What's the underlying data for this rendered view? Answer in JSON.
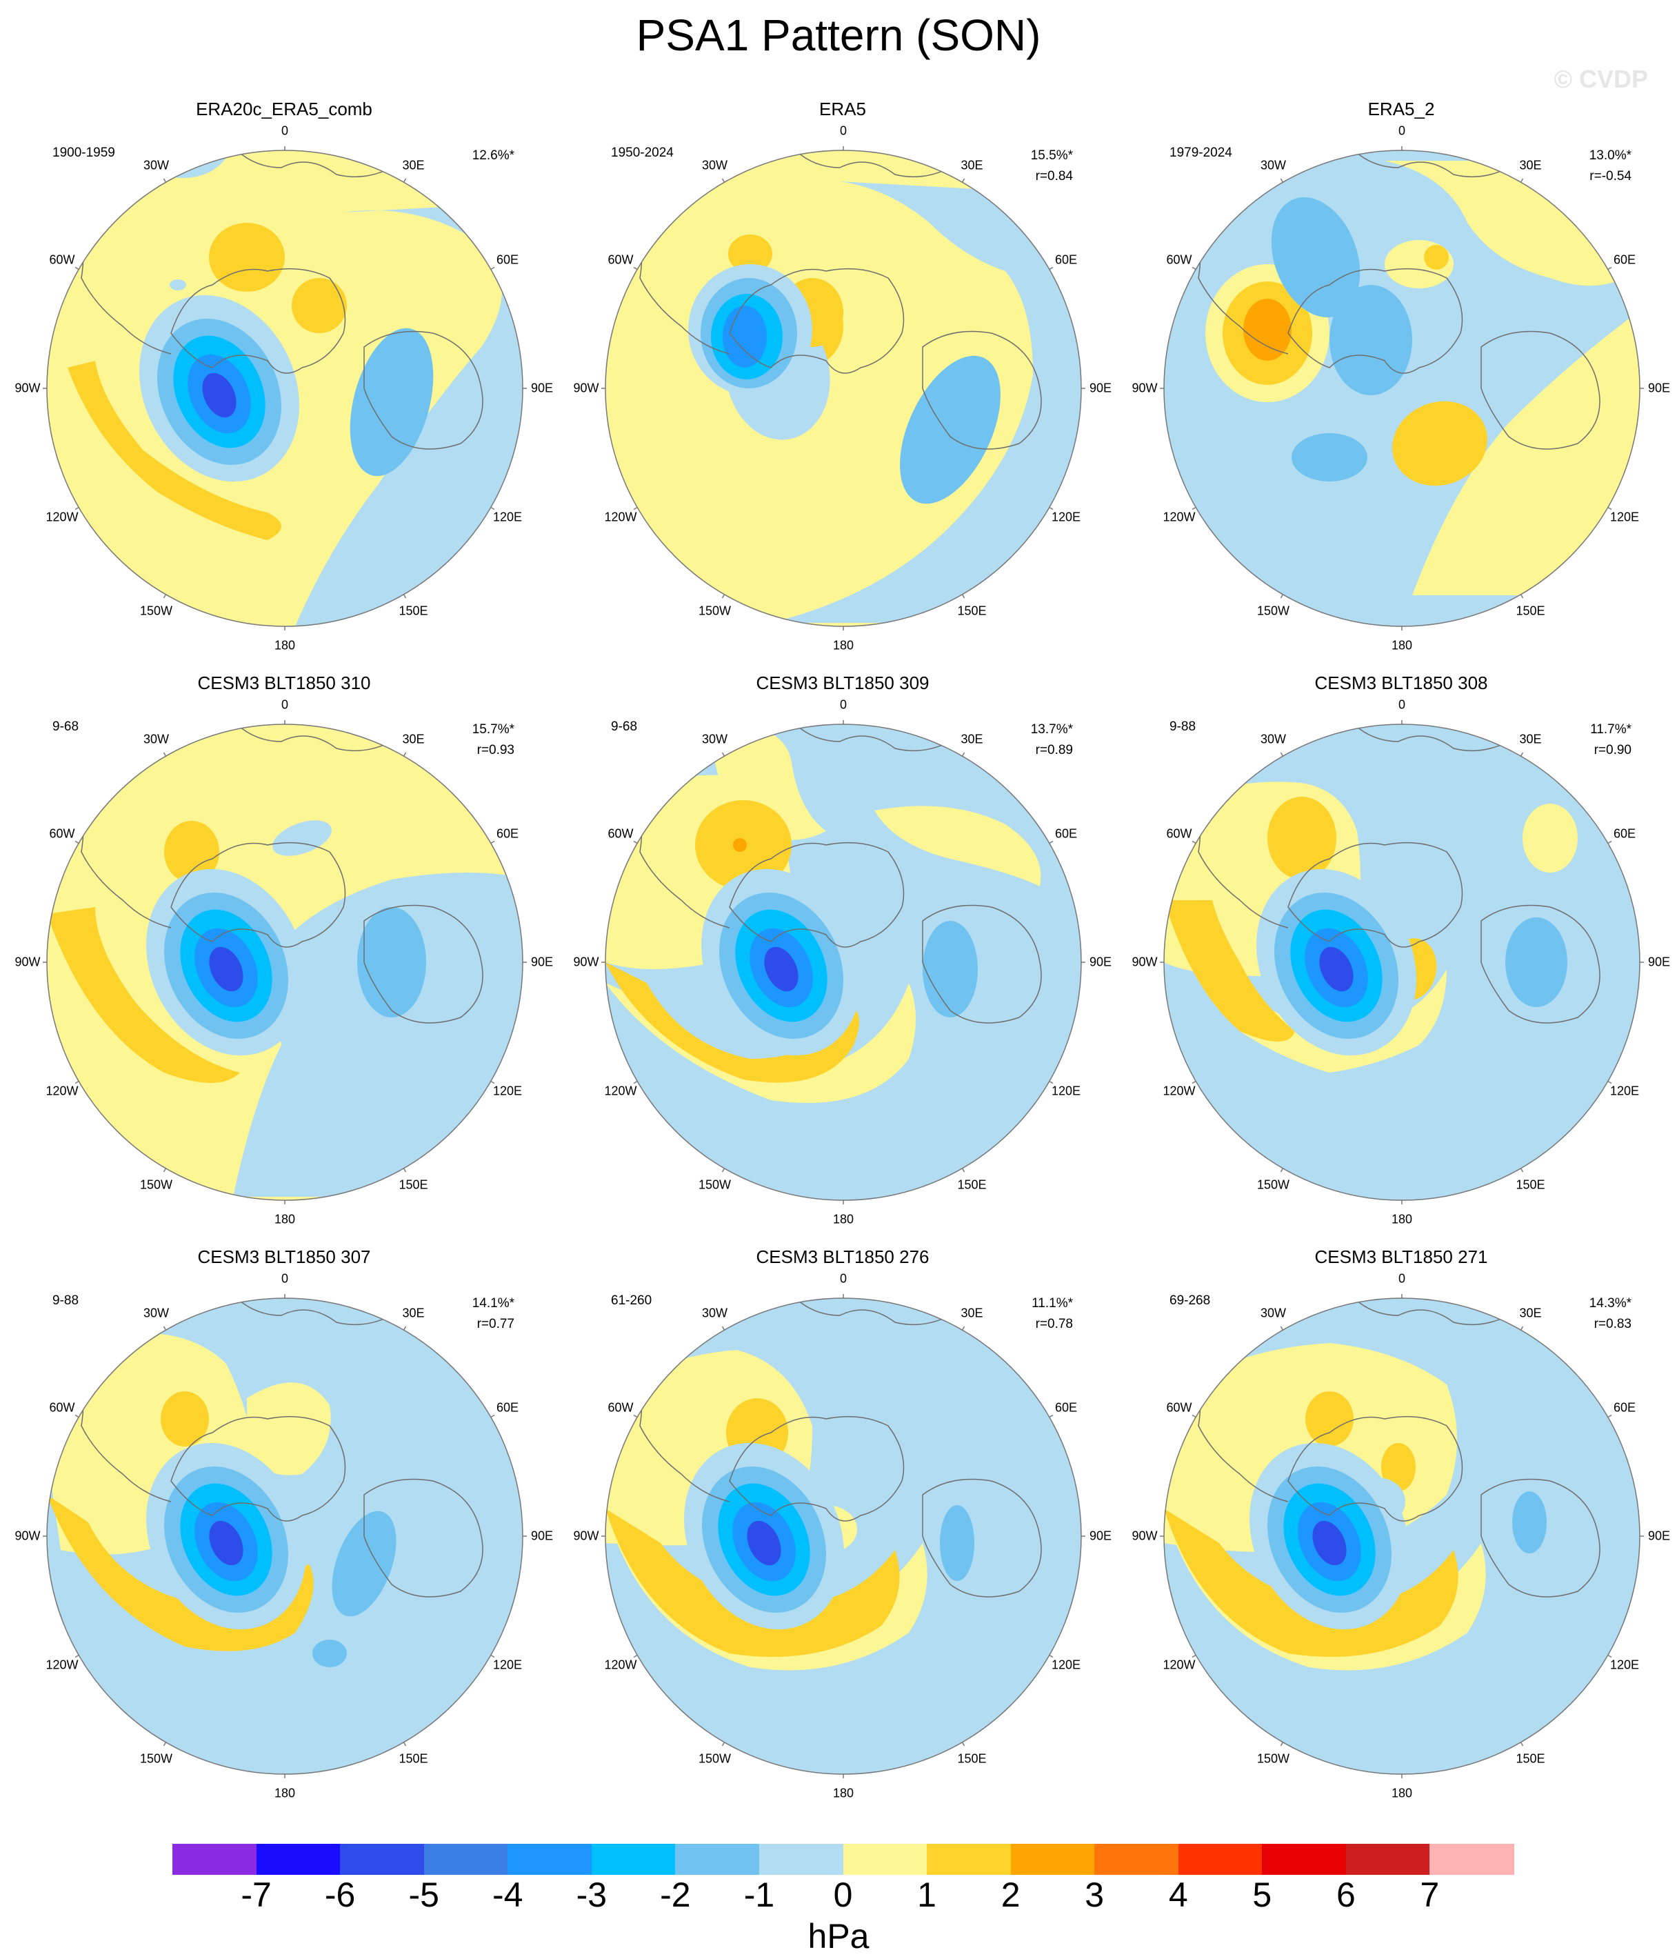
{
  "title": "PSA1 Pattern (SON)",
  "watermark": "© CVDP",
  "longitude_labels": [
    "0",
    "30E",
    "60E",
    "90E",
    "120E",
    "150E",
    "180",
    "150W",
    "120W",
    "90W",
    "60W",
    "30W"
  ],
  "panels": [
    {
      "title": "ERA20c_ERA5_comb",
      "period": "1900-1959",
      "variance": "12.6%*",
      "correlation": ""
    },
    {
      "title": "ERA5",
      "period": "1950-2024",
      "variance": "15.5%*",
      "correlation": "r=0.84"
    },
    {
      "title": "ERA5_2",
      "period": "1979-2024",
      "variance": "13.0%*",
      "correlation": "r=-0.54"
    },
    {
      "title": "CESM3 BLT1850 310",
      "period": "9-68",
      "variance": "15.7%*",
      "correlation": "r=0.93"
    },
    {
      "title": "CESM3 BLT1850 309",
      "period": "9-68",
      "variance": "13.7%*",
      "correlation": "r=0.89"
    },
    {
      "title": "CESM3 BLT1850 308",
      "period": "9-88",
      "variance": "11.7%*",
      "correlation": "r=0.90"
    },
    {
      "title": "CESM3 BLT1850 307",
      "period": "9-88",
      "variance": "14.1%*",
      "correlation": "r=0.77"
    },
    {
      "title": "CESM3 BLT1850 276",
      "period": "61-260",
      "variance": "11.1%*",
      "correlation": "r=0.78"
    },
    {
      "title": "CESM3 BLT1850 271",
      "period": "69-268",
      "variance": "14.3%*",
      "correlation": "r=0.83"
    }
  ],
  "colorbar": {
    "unit": "hPa",
    "tick_labels": [
      "-7",
      "-6",
      "-5",
      "-4",
      "-3",
      "-2",
      "-1",
      "0",
      "1",
      "2",
      "3",
      "4",
      "5",
      "6",
      "7"
    ],
    "colors": [
      "#8a2be2",
      "#1a0dff",
      "#2d4cea",
      "#3a7ee6",
      "#1e96ff",
      "#00bfff",
      "#70c3f0",
      "#b2dcf2",
      "#fdf694",
      "#fdd32b",
      "#ffa500",
      "#ff7509",
      "#ff3200",
      "#e60000",
      "#cd1f1f",
      "#ffb2b2"
    ]
  }
}
